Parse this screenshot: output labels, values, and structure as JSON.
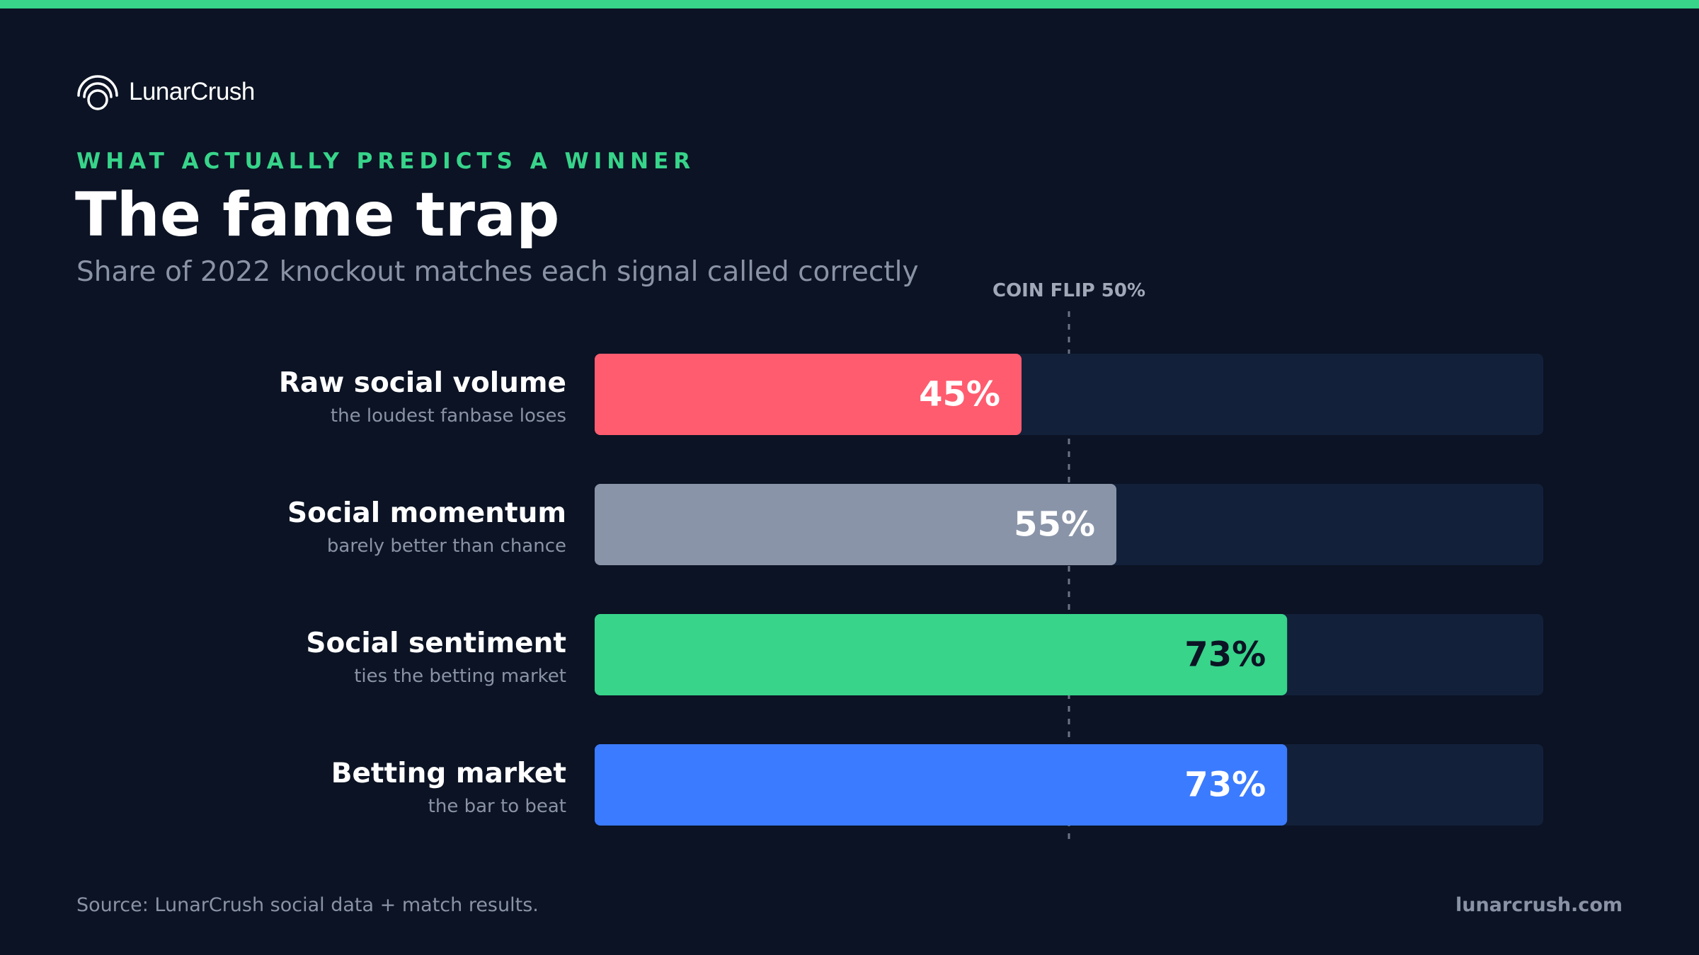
{
  "brand": {
    "name": "LunarCrush",
    "site": "lunarcrush.com"
  },
  "kicker": "WHAT ACTUALLY PREDICTS A WINNER",
  "title": "The fame trap",
  "subtitle": "Share of 2022 knockout matches each signal called correctly",
  "source": "Source: LunarCrush social data + match results.",
  "colors": {
    "background": "#0b1324",
    "track": "#13203a",
    "accent": "#37d48a",
    "reference": "#6b7385"
  },
  "chart_data": {
    "type": "bar",
    "orientation": "horizontal",
    "xlim": [
      0,
      100
    ],
    "unit": "%",
    "reference_line": {
      "value": 50,
      "label": "COIN FLIP 50%"
    },
    "categories": [
      "Raw social volume",
      "Social momentum",
      "Social sentiment",
      "Betting market"
    ],
    "notes": [
      "the loudest fanbase loses",
      "barely better than chance",
      "ties the betting market",
      "the bar to beat"
    ],
    "values": [
      45,
      55,
      73,
      73
    ],
    "value_labels": [
      "45%",
      "55%",
      "73%",
      "73%"
    ],
    "bar_colors": [
      "#ff5c6f",
      "#8a94a8",
      "#37d48a",
      "#3b7bff"
    ],
    "value_label_colors": [
      "#ffffff",
      "#ffffff",
      "#0b1324",
      "#ffffff"
    ],
    "grid": false,
    "legend": "none"
  }
}
